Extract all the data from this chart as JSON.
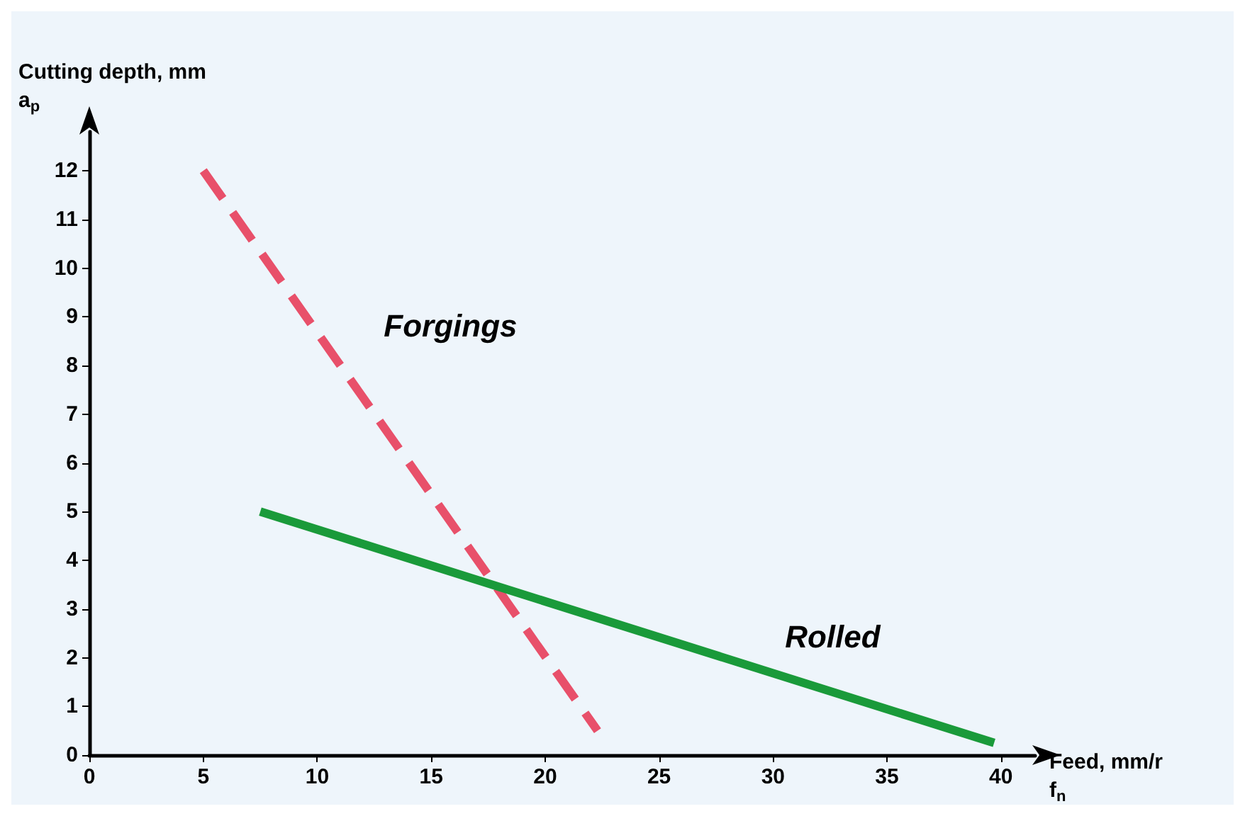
{
  "chart_data": {
    "type": "line",
    "xlabel": "Feed, mm/r\nf$_{n}$",
    "ylabel": "Cutting depth, mm\na$_{p}$",
    "xlim": [
      0,
      41.5
    ],
    "ylim": [
      0,
      12.8
    ],
    "xticks": [
      0,
      5,
      10,
      15,
      20,
      25,
      30,
      35,
      40
    ],
    "yticks": [
      0,
      1,
      2,
      3,
      4,
      5,
      6,
      7,
      8,
      9,
      10,
      11,
      12
    ],
    "grid": false,
    "marker": "none",
    "series": [
      {
        "name": "Forgings",
        "color": "#e8506a",
        "line_style": "dashed",
        "x": [
          5,
          22.3
        ],
        "values": [
          12,
          0.5
        ]
      },
      {
        "name": "Rolled",
        "color": "#1a9a3a",
        "line_style": "solid",
        "x": [
          7.5,
          39.7
        ],
        "values": [
          5,
          0.25
        ]
      }
    ]
  }
}
